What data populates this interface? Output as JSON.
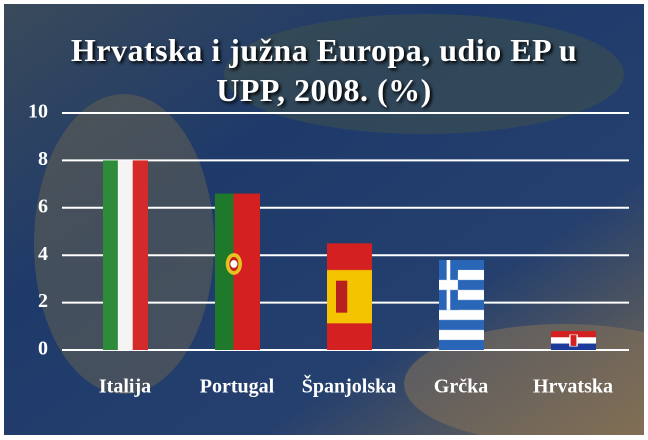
{
  "chart_data": {
    "type": "bar",
    "title": "Hrvatska i južna Europa, udio EP u UPP, 2008. (%)",
    "categories": [
      "Italija",
      "Portugal",
      "Španjolska",
      "Grčka",
      "Hrvatska"
    ],
    "values": [
      8.0,
      6.6,
      4.5,
      3.8,
      0.8
    ],
    "ylim": [
      0,
      10
    ],
    "yticks": [
      0,
      2,
      4,
      6,
      8,
      10
    ],
    "grid": true
  }
}
